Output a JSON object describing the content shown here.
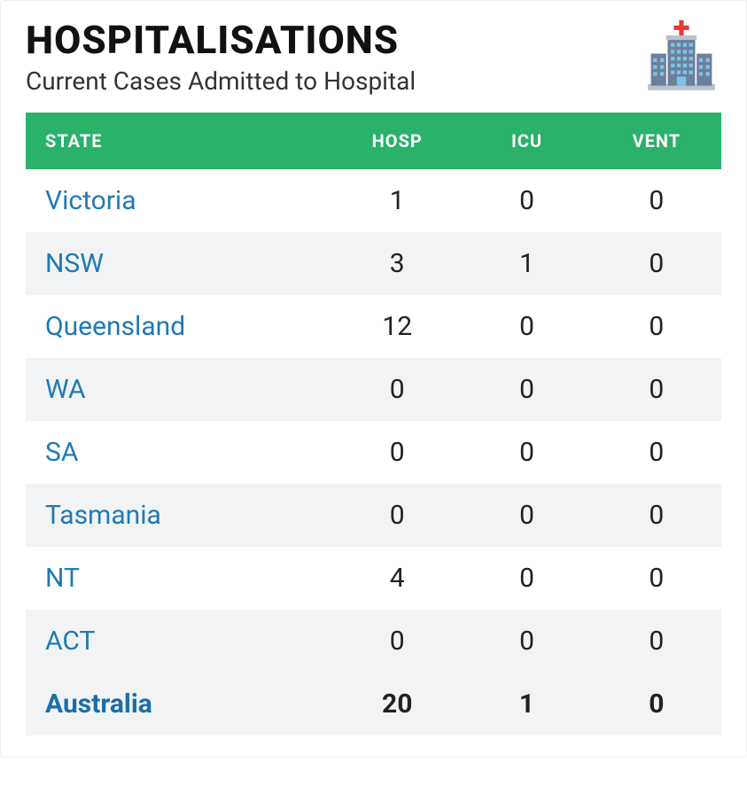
{
  "header": {
    "title": "HOSPITALISATIONS",
    "subtitle": "Current Cases Admitted to Hospital"
  },
  "icon": {
    "name": "hospital-icon",
    "cross_color": "#e53935",
    "building_color": "#6d7f9a",
    "window_color": "#78c5e9",
    "base_color": "#b9c3cf"
  },
  "table": {
    "type": "table",
    "header_bg": "#2ab16a",
    "header_text_color": "#ffffff",
    "row_alt_bg": "#f2f3f4",
    "state_link_color": "#1f7ab5",
    "columns": [
      "STATE",
      "HOSP",
      "ICU",
      "VENT"
    ],
    "rows": [
      {
        "state": "Victoria",
        "hosp": "1",
        "icu": "0",
        "vent": "0",
        "total": false
      },
      {
        "state": "NSW",
        "hosp": "3",
        "icu": "1",
        "vent": "0",
        "total": false
      },
      {
        "state": "Queensland",
        "hosp": "12",
        "icu": "0",
        "vent": "0",
        "total": false
      },
      {
        "state": "WA",
        "hosp": "0",
        "icu": "0",
        "vent": "0",
        "total": false
      },
      {
        "state": "SA",
        "hosp": "0",
        "icu": "0",
        "vent": "0",
        "total": false
      },
      {
        "state": "Tasmania",
        "hosp": "0",
        "icu": "0",
        "vent": "0",
        "total": false
      },
      {
        "state": "NT",
        "hosp": "4",
        "icu": "0",
        "vent": "0",
        "total": false
      },
      {
        "state": "ACT",
        "hosp": "0",
        "icu": "0",
        "vent": "0",
        "total": false
      },
      {
        "state": "Australia",
        "hosp": "20",
        "icu": "1",
        "vent": "0",
        "total": true
      }
    ]
  }
}
